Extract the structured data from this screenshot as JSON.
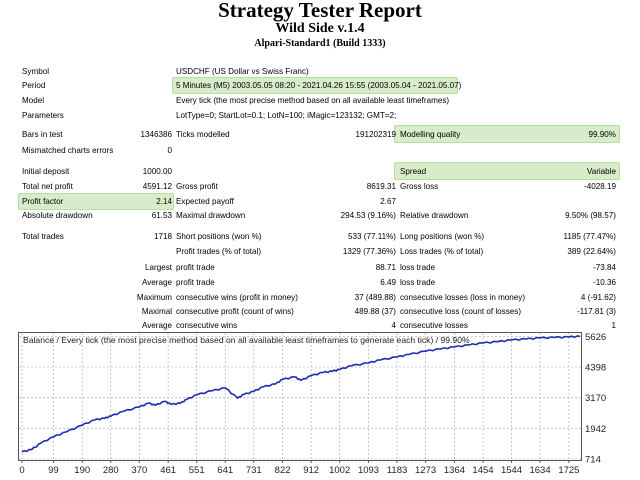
{
  "header": {
    "title": "Strategy Tester Report",
    "ea_name": "Wild Side v.1.4",
    "server": "Alpari-Standard1 (Build 1333)"
  },
  "info": {
    "symbol_label": "Symbol",
    "symbol": "USDCHF (US Dollar vs Swiss Franc)",
    "period_label": "Period",
    "period": "5 Minutes (M5) 2003.05.05 08:20 - 2021.04.26 15:55 (2003.05.04 - 2021.05.07)",
    "model_label": "Model",
    "model": "Every tick (the most precise method based on all available least timeframes)",
    "params_label": "Parameters",
    "params": "LotType=0; StartLot=0.1; LotN=100; iMagic=123132; GMT=2;"
  },
  "stats": {
    "bars_label": "Bars in test",
    "bars": "1346386",
    "ticks_label": "Ticks modelled",
    "ticks": "191202319",
    "quality_label": "Modelling quality",
    "quality": "99.90%",
    "mismatch_label": "Mismatched charts errors",
    "mismatch": "0",
    "deposit_label": "Initial deposit",
    "deposit": "1000.00",
    "spread_label": "Spread",
    "spread": "Variable",
    "netprofit_label": "Total net profit",
    "netprofit": "4591.12",
    "grossprofit_label": "Gross profit",
    "grossprofit": "8619.31",
    "grossloss_label": "Gross loss",
    "grossloss": "-4028.19",
    "pf_label": "Profit factor",
    "pf": "2.14",
    "payoff_label": "Expected payoff",
    "payoff": "2.67",
    "absdd_label": "Absolute drawdown",
    "absdd": "61.53",
    "maxdd_label": "Maximal drawdown",
    "maxdd": "294.53 (9.16%)",
    "reldd_label": "Relative drawdown",
    "reldd": "9.50% (98.57)",
    "trades_label": "Total trades",
    "trades": "1718",
    "short_label": "Short positions (won %)",
    "short": "533 (77.11%)",
    "long_label": "Long positions (won %)",
    "long": "1185 (77.47%)",
    "ptrades_label": "Profit trades (% of total)",
    "ptrades": "1329 (77.36%)",
    "ltrades_label": "Loss trades (% of total)",
    "ltrades": "389 (22.64%)",
    "largest_label": "Largest",
    "lp_label": "profit trade",
    "lp": "88.71",
    "ll_label": "loss trade",
    "ll": "-73.84",
    "average_label": "Average",
    "ap_label": "profit trade",
    "ap": "6.49",
    "al_label": "loss trade",
    "al": "-10.36",
    "maximum_label": "Maximum",
    "mcw_label": "consecutive wins (profit in money)",
    "mcw": "37 (489.88)",
    "mcl_label": "consecutive losses (loss in money)",
    "mcl": "4 (-91.62)",
    "maximal_label": "Maximal",
    "mcp_label": "consecutive profit (count of wins)",
    "mcp": "489.88 (37)",
    "mcll_label": "consecutive loss (count of losses)",
    "mcll": "-117.81 (3)",
    "average2_label": "Average",
    "acw_label": "consecutive wins",
    "acw": "4",
    "acl_label": "consecutive losses",
    "acl": "1"
  },
  "colors": {
    "highlight": "#d7ecc9",
    "line": "#1f2bb0",
    "grid": "#b9b9b9"
  },
  "chart_data": {
    "type": "line",
    "title": "Balance / Every tick (the most precise method based on all available least timeframes to generate each tick) / 99.90%",
    "xlabel": "",
    "ylabel": "",
    "x_ticks": [
      0,
      99,
      190,
      280,
      370,
      461,
      551,
      641,
      731,
      822,
      912,
      1002,
      1093,
      1183,
      1273,
      1364,
      1454,
      1544,
      1634,
      1725
    ],
    "y_ticks": [
      714,
      1942,
      3170,
      4398,
      5626
    ],
    "xlim": [
      0,
      1760
    ],
    "ylim": [
      714,
      5720
    ],
    "series": [
      {
        "name": "Balance",
        "x": [
          0,
          30,
          60,
          99,
          140,
          190,
          230,
          260,
          280,
          320,
          370,
          400,
          420,
          450,
          470,
          500,
          520,
          551,
          600,
          641,
          680,
          700,
          731,
          760,
          800,
          822,
          860,
          880,
          912,
          950,
          980,
          1002,
          1040,
          1093,
          1130,
          1183,
          1220,
          1273,
          1320,
          1364,
          1410,
          1454,
          1500,
          1544,
          1590,
          1634,
          1680,
          1725,
          1760
        ],
        "values": [
          1000,
          1090,
          1350,
          1600,
          1800,
          2070,
          2280,
          2340,
          2430,
          2620,
          2800,
          2950,
          2860,
          3020,
          2900,
          2950,
          3100,
          3280,
          3450,
          3560,
          3150,
          3300,
          3420,
          3600,
          3720,
          3900,
          4000,
          3860,
          4050,
          4180,
          4230,
          4300,
          4450,
          4560,
          4680,
          4800,
          4900,
          5030,
          5120,
          5200,
          5280,
          5360,
          5410,
          5480,
          5520,
          5560,
          5580,
          5600,
          5626
        ]
      }
    ]
  }
}
